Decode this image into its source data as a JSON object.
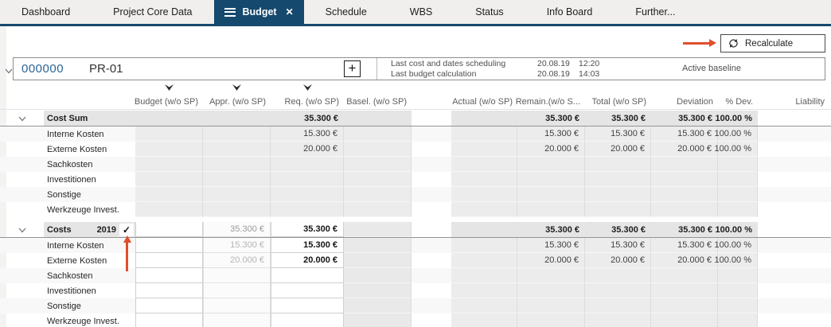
{
  "tabs": {
    "items": [
      {
        "label": "Dashboard",
        "active": false
      },
      {
        "label": "Project Core Data",
        "active": false
      },
      {
        "label": "Budget",
        "active": true
      },
      {
        "label": "Schedule",
        "active": false
      },
      {
        "label": "WBS",
        "active": false
      },
      {
        "label": "Status",
        "active": false
      },
      {
        "label": "Info Board",
        "active": false
      },
      {
        "label": "Further...",
        "active": false
      }
    ]
  },
  "toolbar": {
    "recalculate_label": "Recalculate"
  },
  "project": {
    "number": "000000",
    "code": "PR-01",
    "add_label": "+",
    "info": [
      {
        "label": "Last cost and dates scheduling",
        "date": "20.08.19",
        "time": "12:20"
      },
      {
        "label": "Last budget calculation",
        "date": "20.08.19",
        "time": "14:03"
      }
    ],
    "baseline": "Active baseline"
  },
  "table": {
    "columns": [
      "Budget (w/o SP)",
      "Appr. (w/o SP)",
      "Req. (w/o SP)",
      "Basel. (w/o SP)",
      "Actual (w/o SP)",
      "Remain.(w/o S...",
      "Total (w/o SP)",
      "Deviation",
      "% Dev.",
      "Liability"
    ],
    "filtered_columns": [
      0,
      1,
      2
    ],
    "groups": [
      {
        "title": "Cost Sum",
        "year": "",
        "checked": false,
        "totals": {
          "budget": "",
          "appr": "",
          "req": "35.300 €",
          "basel": "",
          "actual": "",
          "remain": "35.300 €",
          "total": "35.300 €",
          "deviation": "35.300 €",
          "pct_dev": "100.00 %",
          "liability": ""
        },
        "rows": [
          {
            "label": "Interne Kosten",
            "budget": "",
            "appr": "",
            "req": "15.300 €",
            "basel": "",
            "actual": "",
            "remain": "15.300 €",
            "total": "15.300 €",
            "deviation": "15.300 €",
            "pct_dev": "100.00 %",
            "liability": ""
          },
          {
            "label": "Externe Kosten",
            "budget": "",
            "appr": "",
            "req": "20.000 €",
            "basel": "",
            "actual": "",
            "remain": "20.000 €",
            "total": "20.000 €",
            "deviation": "20.000 €",
            "pct_dev": "100.00 %",
            "liability": ""
          },
          {
            "label": "Sachkosten",
            "budget": "",
            "appr": "",
            "req": "",
            "basel": "",
            "actual": "",
            "remain": "",
            "total": "",
            "deviation": "",
            "pct_dev": "",
            "liability": ""
          },
          {
            "label": "Investitionen",
            "budget": "",
            "appr": "",
            "req": "",
            "basel": "",
            "actual": "",
            "remain": "",
            "total": "",
            "deviation": "",
            "pct_dev": "",
            "liability": ""
          },
          {
            "label": "Sonstige",
            "budget": "",
            "appr": "",
            "req": "",
            "basel": "",
            "actual": "",
            "remain": "",
            "total": "",
            "deviation": "",
            "pct_dev": "",
            "liability": ""
          },
          {
            "label": "Werkzeuge Invest.",
            "budget": "",
            "appr": "",
            "req": "",
            "basel": "",
            "actual": "",
            "remain": "",
            "total": "",
            "deviation": "",
            "pct_dev": "",
            "liability": ""
          }
        ]
      },
      {
        "title": "Costs",
        "year": "2019",
        "checked": true,
        "check_glyph": "✓",
        "totals": {
          "budget": "",
          "appr": "35.300 €",
          "req": "35.300 €",
          "basel": "",
          "actual": "",
          "remain": "35.300 €",
          "total": "35.300 €",
          "deviation": "35.300 €",
          "pct_dev": "100.00 %",
          "liability": ""
        },
        "rows": [
          {
            "label": "Interne Kosten",
            "budget": "",
            "appr": "15.300 €",
            "req": "15.300 €",
            "basel": "",
            "actual": "",
            "remain": "15.300 €",
            "total": "15.300 €",
            "deviation": "15.300 €",
            "pct_dev": "100.00 %",
            "liability": ""
          },
          {
            "label": "Externe Kosten",
            "budget": "",
            "appr": "20.000 €",
            "req": "20.000 €",
            "basel": "",
            "actual": "",
            "remain": "20.000 €",
            "total": "20.000 €",
            "deviation": "20.000 €",
            "pct_dev": "100.00 %",
            "liability": ""
          },
          {
            "label": "Sachkosten",
            "budget": "",
            "appr": "",
            "req": "",
            "basel": "",
            "actual": "",
            "remain": "",
            "total": "",
            "deviation": "",
            "pct_dev": "",
            "liability": ""
          },
          {
            "label": "Investitionen",
            "budget": "",
            "appr": "",
            "req": "",
            "basel": "",
            "actual": "",
            "remain": "",
            "total": "",
            "deviation": "",
            "pct_dev": "",
            "liability": ""
          },
          {
            "label": "Sonstige",
            "budget": "",
            "appr": "",
            "req": "",
            "basel": "",
            "actual": "",
            "remain": "",
            "total": "",
            "deviation": "",
            "pct_dev": "",
            "liability": ""
          },
          {
            "label": "Werkzeuge Invest.",
            "budget": "",
            "appr": "",
            "req": "",
            "basel": "",
            "actual": "",
            "remain": "",
            "total": "",
            "deviation": "",
            "pct_dev": "",
            "liability": ""
          }
        ]
      }
    ]
  },
  "colors": {
    "accent_arrow": "#e04e2b",
    "active_tab": "#15496d",
    "project_number_blue": "#2a6496"
  }
}
